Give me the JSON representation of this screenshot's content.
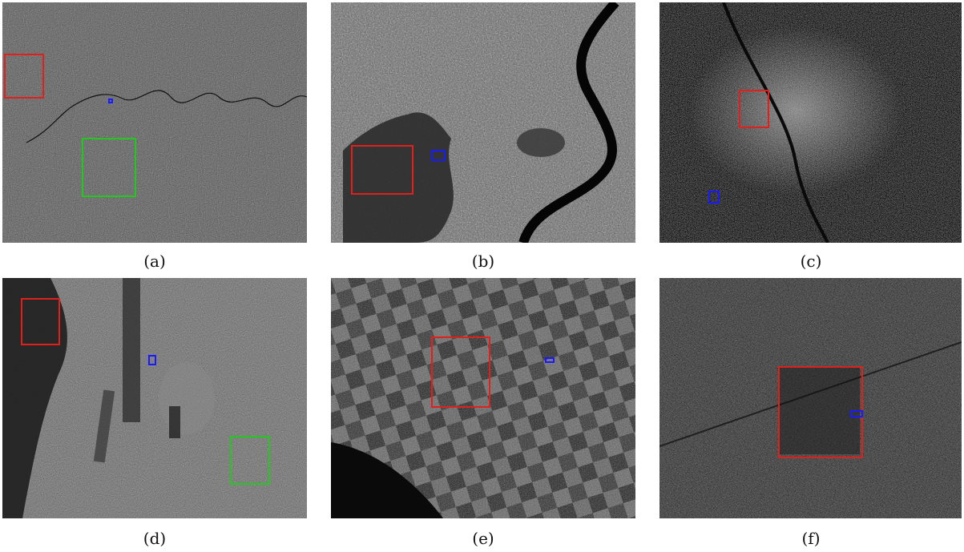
{
  "figure": {
    "panels": [
      {
        "caption": "(a)"
      },
      {
        "caption": "(b)"
      },
      {
        "caption": "(c)"
      },
      {
        "caption": "(d)"
      },
      {
        "caption": "(e)"
      },
      {
        "caption": "(f)"
      }
    ],
    "colors": {
      "red_box": "#e0201c",
      "green_box": "#22c81e",
      "blue_box": "#1a1aff"
    }
  }
}
